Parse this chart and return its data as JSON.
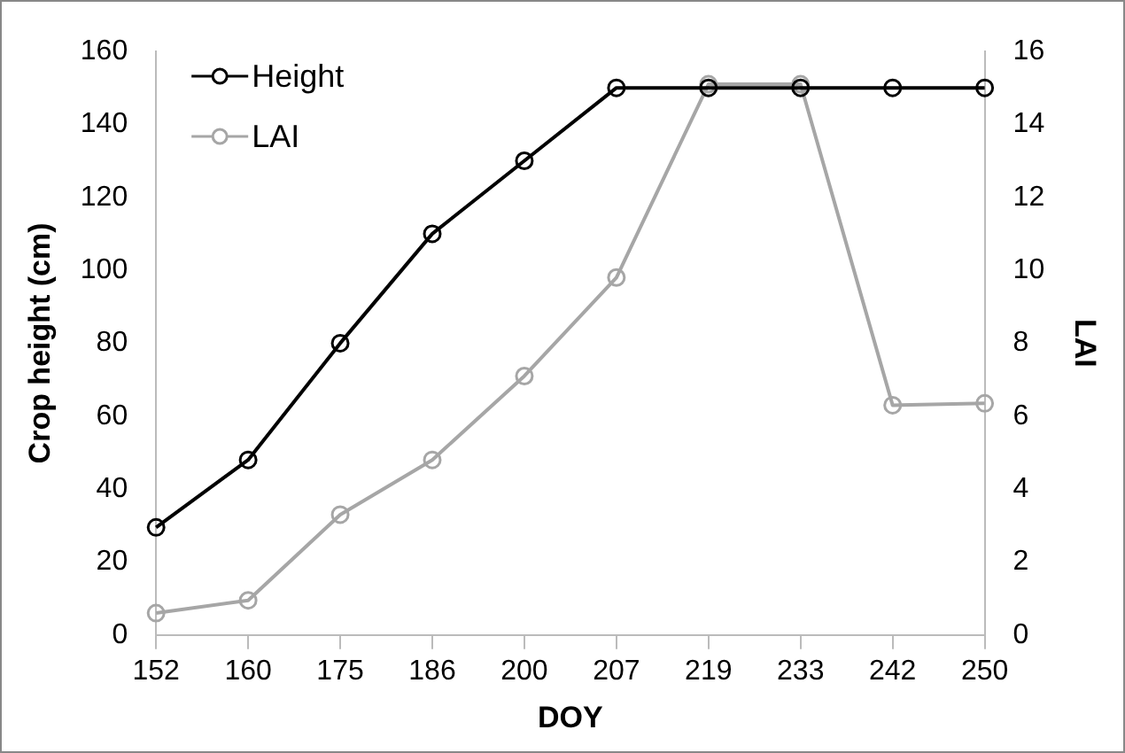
{
  "chart_data": {
    "type": "line",
    "xlabel": "DOY",
    "ylabel": "Crop height (cm)",
    "y2label": "LAI",
    "categories": [
      "152",
      "160",
      "175",
      "186",
      "200",
      "207",
      "219",
      "233",
      "242",
      "250"
    ],
    "series": [
      {
        "name": "Height",
        "color": "#000000",
        "values": [
          29.5,
          48,
          80,
          110,
          130,
          150,
          150,
          150,
          150,
          150
        ]
      },
      {
        "name": "LAI",
        "color": "#a6a6a6",
        "axis": "y2",
        "values": [
          0.6,
          0.95,
          3.3,
          4.8,
          7.1,
          9.8,
          15.1,
          15.1,
          6.3,
          6.35
        ]
      }
    ],
    "ylim": [
      0,
      160
    ],
    "yticks": [
      0,
      20,
      40,
      60,
      80,
      100,
      120,
      140,
      160
    ],
    "y2lim": [
      0,
      16
    ],
    "y2ticks": [
      0,
      2,
      4,
      6,
      8,
      10,
      12,
      14,
      16
    ],
    "grid": false,
    "legend": "top left",
    "marker": "circle",
    "line_style": "solid"
  }
}
